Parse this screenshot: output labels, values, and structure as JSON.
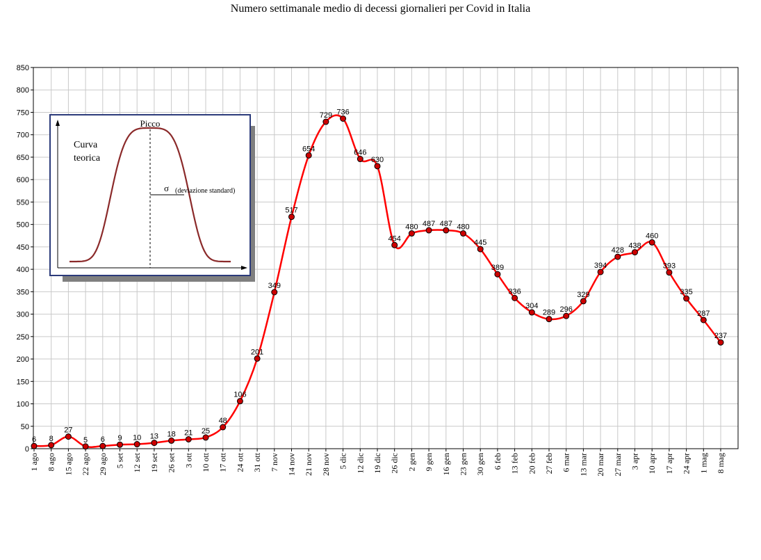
{
  "chart_data": {
    "type": "line",
    "title": "Numero settimanale medio di decessi giornalieri per Covid in Italia",
    "xlabel": "",
    "ylabel": "",
    "ylim": [
      0,
      850
    ],
    "ytick_step": 50,
    "grid": true,
    "legend": "none",
    "categories": [
      "1 ago",
      "8 ago",
      "15 ago",
      "22 ago",
      "29 ago",
      "5 set",
      "12 set",
      "19 set",
      "26 set",
      "3 ott",
      "10 ott",
      "17 ott",
      "24 ott",
      "31 ott",
      "7 nov",
      "14 nov",
      "21 nov",
      "28 nov",
      "5 dic",
      "12 dic",
      "19 dic",
      "26 dic",
      "2 gen",
      "9 gen",
      "16 gen",
      "23 gen",
      "30 gen",
      "6 feb",
      "13 feb",
      "20 feb",
      "27 feb",
      "6 mar",
      "13 mar",
      "20 mar",
      "27 mar",
      "3 apr",
      "10 apr",
      "17 apr",
      "24 apr",
      "1 mag",
      "8 mag"
    ],
    "series": [
      {
        "values": [
          6,
          8,
          27,
          5,
          6,
          9,
          10,
          13,
          18,
          21,
          25,
          48,
          106,
          201,
          349,
          517,
          654,
          729,
          736,
          646,
          630,
          454,
          480,
          487,
          487,
          480,
          445,
          389,
          336,
          304,
          289,
          296,
          329,
          394,
          428,
          438,
          460,
          393,
          335,
          287,
          237
        ],
        "color": "#ff0000",
        "marker_color": "#cc0000"
      }
    ],
    "inset": {
      "peak_label": "Picco",
      "curve_label_line1": "Curva",
      "curve_label_line2": "teorica",
      "sigma_symbol": "σ",
      "sigma_label": "(deviazione standard)",
      "border_color": "#2b3a7a",
      "curve_color": "#8b2a2a"
    }
  }
}
